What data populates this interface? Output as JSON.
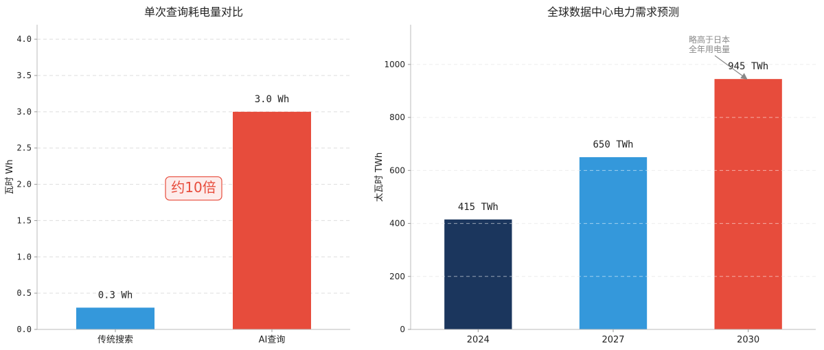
{
  "chart_data": [
    {
      "type": "bar",
      "title": "单次查询耗电量对比",
      "ylabel": "瓦时 Wh",
      "xlabel": "",
      "categories": [
        "传统搜索",
        "AI查询"
      ],
      "values": [
        0.3,
        3.0
      ],
      "value_labels": [
        "0.3 Wh",
        "3.0 Wh"
      ],
      "colors": [
        "#3498db",
        "#e74c3c"
      ],
      "ylim": [
        0,
        4.2
      ],
      "yticks": [
        0.0,
        0.5,
        1.0,
        1.5,
        2.0,
        2.5,
        3.0,
        3.5,
        4.0
      ],
      "ytick_labels": [
        "0.0",
        "0.5",
        "1.0",
        "1.5",
        "2.0",
        "2.5",
        "3.0",
        "3.5",
        "4.0"
      ],
      "grid": true,
      "ratio_annotation": {
        "text": "约10倍",
        "y": 2.0,
        "color": "#e74c3c"
      }
    },
    {
      "type": "bar",
      "title": "全球数据中心电力需求预测",
      "ylabel": "太瓦时 TWh",
      "xlabel": "",
      "categories": [
        "2024",
        "2027",
        "2030"
      ],
      "values": [
        415,
        650,
        945
      ],
      "value_labels": [
        "415 TWh",
        "650 TWh",
        "945 TWh"
      ],
      "colors": [
        "#1b365d",
        "#3498db",
        "#e74c3c"
      ],
      "ylim": [
        0,
        1150
      ],
      "yticks": [
        0,
        200,
        400,
        600,
        800,
        1000
      ],
      "ytick_labels": [
        "0",
        "200",
        "400",
        "600",
        "800",
        "1000"
      ],
      "grid": true,
      "arrow_annotation": {
        "lines": [
          "略高于日本",
          "全年用电量"
        ],
        "target_category": "2030",
        "target_value": 945,
        "color": "#888888"
      }
    }
  ]
}
